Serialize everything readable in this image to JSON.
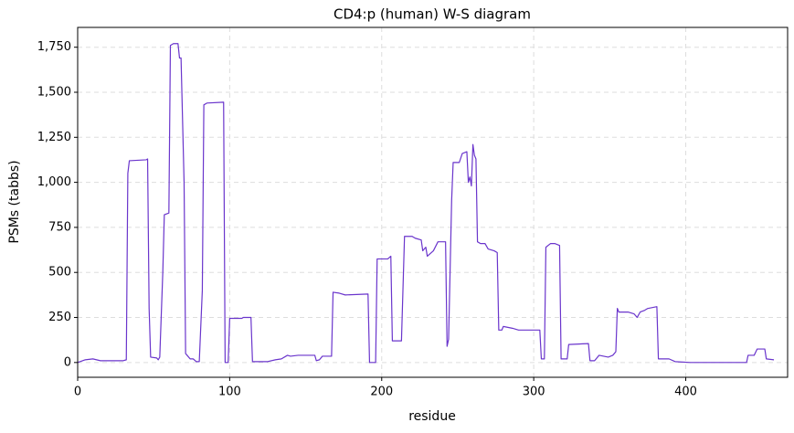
{
  "chart_data": {
    "type": "line",
    "title": "CD4:p (human) W-S diagram",
    "xlabel": "residue",
    "ylabel": "PSMs (tabbs)",
    "color": "#6a35cc",
    "grid": true,
    "xlim": [
      0,
      467
    ],
    "ylim": [
      -82,
      1860
    ],
    "xticks": [
      0,
      100,
      200,
      300,
      400
    ],
    "yticks": [
      0,
      250,
      500,
      750,
      {
        "value": 1000,
        "label": "1,000"
      },
      {
        "value": 1250,
        "label": "1,250"
      },
      {
        "value": 1500,
        "label": "1,500"
      },
      {
        "value": 1750,
        "label": "1,750"
      }
    ],
    "x": [
      0,
      5,
      10,
      15,
      30,
      32,
      33,
      34,
      45,
      46,
      47,
      48,
      52,
      53,
      54,
      56,
      57,
      60,
      61,
      63,
      66,
      67,
      68,
      70,
      71,
      72,
      74,
      76,
      78,
      80,
      82,
      83,
      85,
      96,
      97,
      99,
      100,
      108,
      109,
      114,
      115,
      125,
      130,
      134,
      138,
      140,
      145,
      156,
      157,
      159,
      161,
      167,
      168,
      172,
      176,
      191,
      192,
      196,
      197,
      204,
      206,
      207,
      213,
      215,
      220,
      222,
      226,
      227,
      229,
      230,
      234,
      237,
      242,
      243,
      244,
      246,
      247,
      251,
      253,
      256,
      257,
      258,
      259,
      260,
      261,
      262,
      263,
      265,
      268,
      270,
      274,
      276,
      277,
      279,
      280,
      286,
      290,
      304,
      305,
      307,
      308,
      311,
      314,
      317,
      318,
      322,
      323,
      336,
      337,
      340,
      343,
      349,
      352,
      354,
      355,
      356,
      362,
      366,
      367,
      368,
      370,
      373,
      375,
      381,
      382,
      389,
      393,
      403,
      440,
      441,
      445,
      447,
      452,
      453,
      458
    ],
    "values": [
      0,
      15,
      20,
      10,
      10,
      15,
      1050,
      1120,
      1125,
      1130,
      300,
      30,
      25,
      15,
      30,
      500,
      820,
      830,
      1760,
      1770,
      1770,
      1690,
      1690,
      1000,
      50,
      40,
      20,
      20,
      5,
      5,
      400,
      1430,
      1440,
      1445,
      0,
      0,
      245,
      245,
      250,
      250,
      5,
      5,
      15,
      20,
      40,
      35,
      40,
      40,
      10,
      15,
      35,
      35,
      390,
      385,
      375,
      380,
      0,
      0,
      575,
      575,
      590,
      120,
      120,
      700,
      700,
      690,
      680,
      620,
      640,
      590,
      620,
      670,
      670,
      90,
      130,
      900,
      1110,
      1110,
      1160,
      1170,
      1000,
      1030,
      980,
      1210,
      1150,
      1130,
      670,
      660,
      660,
      630,
      620,
      610,
      180,
      180,
      200,
      190,
      180,
      180,
      20,
      20,
      640,
      660,
      660,
      650,
      20,
      20,
      100,
      105,
      10,
      10,
      40,
      30,
      40,
      60,
      300,
      280,
      280,
      270,
      260,
      250,
      280,
      290,
      300,
      310,
      20,
      20,
      5,
      0,
      0,
      40,
      40,
      75,
      75,
      20,
      15
    ]
  }
}
